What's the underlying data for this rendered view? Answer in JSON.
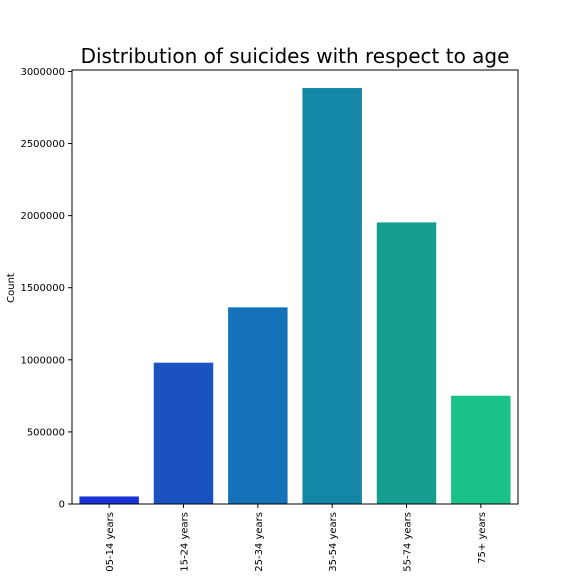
{
  "chart_data": {
    "type": "bar",
    "title": "Distribution of suicides with respect to age",
    "xlabel": "",
    "ylabel": "Count",
    "categories": [
      "05-14 years",
      "15-24 years",
      "25-34 years",
      "35-54 years",
      "55-74 years",
      "75+ years"
    ],
    "values": [
      52264,
      980000,
      1364000,
      2885000,
      1953000,
      751000
    ],
    "colors": [
      "#1a33d8",
      "#1b52c2",
      "#1672b8",
      "#1487a6",
      "#159f91",
      "#1bc287"
    ],
    "ylim": [
      0,
      3010000
    ],
    "yticks": [
      0,
      500000,
      1000000,
      1500000,
      2000000,
      2500000,
      3000000
    ],
    "ytick_labels": [
      "0",
      "500000",
      "1000000",
      "1500000",
      "2000000",
      "2500000",
      "3000000"
    ],
    "grid": false,
    "legend": "none"
  }
}
